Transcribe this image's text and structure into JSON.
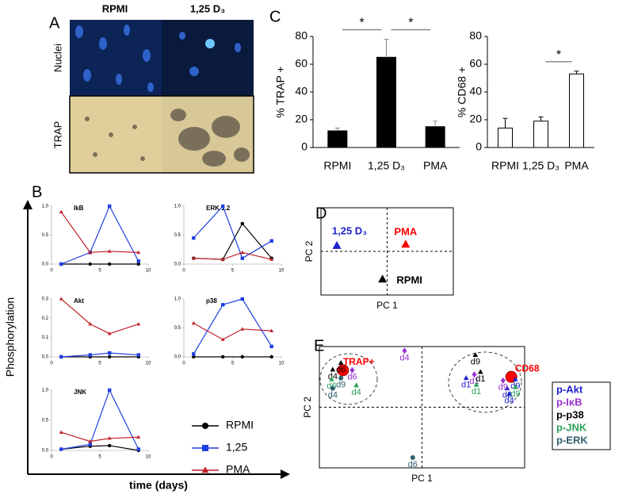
{
  "panel_labels": [
    "A",
    "B",
    "C",
    "D",
    "E"
  ],
  "panel_a": {
    "columns": [
      "RPMI",
      "1,25 D₃"
    ],
    "rows": [
      "Nuclei",
      "TRAP"
    ]
  },
  "chart_data": [
    {
      "type": "bar",
      "ylabel": "% TRAP +",
      "categories": [
        "RPMI",
        "1,25 D₃",
        "PMA"
      ],
      "values": [
        12,
        65,
        15
      ],
      "errors": [
        2,
        13,
        4
      ],
      "color": "#000000",
      "ylim": [
        0,
        80
      ],
      "yticks": [
        0,
        20,
        40,
        60,
        80
      ],
      "annotations": [
        "*",
        "*"
      ]
    },
    {
      "type": "bar",
      "ylabel": "% CD68 +",
      "categories": [
        "RPMI",
        "1,25 D₃",
        "PMA"
      ],
      "values": [
        14,
        19,
        53
      ],
      "errors": [
        7,
        3,
        2
      ],
      "color": "#ffffff",
      "ylim": [
        0,
        80
      ],
      "yticks": [
        0,
        20,
        40,
        60,
        80
      ],
      "annotations": [
        "*"
      ]
    },
    {
      "type": "line",
      "xlabel": "time (days)",
      "ylabel": "Phosphorylation",
      "x": [
        1,
        4,
        6,
        9
      ],
      "xlim": [
        0,
        10
      ],
      "xticks": [
        0,
        5,
        10
      ],
      "series": [
        {
          "name": "RPMI",
          "color": "#000000",
          "marker": "circle"
        },
        {
          "name": "1,25",
          "color": "#1f3fe0",
          "marker": "square"
        },
        {
          "name": "PMA",
          "color": "#c0202a",
          "marker": "triangle"
        }
      ],
      "subplots": [
        {
          "title": "IkB",
          "ylim": [
            0,
            1
          ],
          "yticks": [
            {
              "value": 0,
              "label": "0.0"
            },
            {
              "value": 0.5,
              "label": "0.5"
            },
            {
              "value": 1,
              "label": "1.0"
            }
          ],
          "values": [
            [
              0,
              0,
              0,
              0
            ],
            [
              0,
              0.2,
              1.0,
              0.05
            ],
            [
              0.9,
              0.2,
              0.22,
              0.2
            ]
          ]
        },
        {
          "title": "ERK 1.2",
          "ylim": [
            0,
            1
          ],
          "yticks": [
            {
              "value": 0,
              "label": "0.0"
            },
            {
              "value": 0.5,
              "label": "0.5"
            },
            {
              "value": 1,
              "label": "1.0"
            }
          ],
          "values": [
            [
              0.1,
              0.08,
              0.7,
              0.1
            ],
            [
              0.45,
              1.0,
              0.1,
              0.4
            ],
            [
              0.1,
              0.08,
              0.2,
              0.08
            ]
          ]
        },
        {
          "title": "Akt",
          "ylim": [
            0,
            0.3
          ],
          "yticks": [
            {
              "value": 0,
              "label": "0.0"
            },
            {
              "value": 0.1,
              "label": "0.1"
            },
            {
              "value": 0.2,
              "label": "0.2"
            },
            {
              "value": 0.3,
              "label": "0.3"
            }
          ],
          "values": [
            [
              0,
              0,
              0,
              0
            ],
            [
              0,
              0.01,
              0.02,
              0.01
            ],
            [
              0.3,
              0.17,
              0.12,
              0.17
            ]
          ]
        },
        {
          "title": "p38",
          "ylim": [
            0,
            1
          ],
          "yticks": [
            {
              "value": 0,
              "label": "0.0"
            },
            {
              "value": 0.5,
              "label": "0.5"
            },
            {
              "value": 1,
              "label": "1.0"
            }
          ],
          "values": [
            [
              0,
              0,
              0,
              0
            ],
            [
              0.05,
              0.9,
              1.0,
              0.18
            ],
            [
              0.58,
              0.3,
              0.48,
              0.45
            ]
          ]
        },
        {
          "title": "JNK",
          "ylim": [
            0,
            1
          ],
          "yticks": [
            {
              "value": 0,
              "label": "0.0"
            },
            {
              "value": 0.5,
              "label": "0.5"
            },
            {
              "value": 1,
              "label": "1.0"
            }
          ],
          "values": [
            [
              0.02,
              0.07,
              0.08,
              0
            ],
            [
              0.02,
              0.1,
              1.0,
              0.02
            ],
            [
              0.3,
              0.15,
              0.2,
              0.22
            ]
          ]
        }
      ]
    },
    {
      "type": "scatter",
      "xlabel": "PC 1",
      "ylabel": "PC 2",
      "xlim": [
        -1,
        1
      ],
      "ylim": [
        -1,
        1
      ],
      "series": [
        {
          "name": "1,25 D₃",
          "color": "#1f1fd0",
          "x": [
            -0.76
          ],
          "y": [
            0.13
          ]
        },
        {
          "name": "PMA",
          "color": "#ff0000",
          "x": [
            0.28
          ],
          "y": [
            0.16
          ]
        },
        {
          "name": "RPMI",
          "color": "#000000",
          "x": [
            -0.07
          ],
          "y": [
            -0.64
          ]
        }
      ]
    },
    {
      "type": "scatter",
      "xlabel": "PC 1",
      "ylabel": "PC 2",
      "xlim": [
        -1,
        1
      ],
      "ylim": [
        -1,
        1
      ],
      "legend": "right",
      "series": [
        {
          "name": "p-Akt",
          "color": "#1f1fd0",
          "marker": "triangle",
          "x": [
            0.43,
            0.91,
            0.83,
            0.85
          ],
          "y": [
            0.48,
            0.46,
            0.31,
            0.22
          ],
          "labels": [
            "d1",
            "d9",
            "d6",
            "d4"
          ]
        },
        {
          "name": "p-IκB",
          "color": "#9b30d0",
          "marker": "diamond",
          "x": [
            -0.17,
            -0.68,
            0.51,
            0.79
          ],
          "y": [
            0.93,
            0.61,
            0.54,
            0.44
          ],
          "labels": [
            "d4",
            "d6",
            "d1",
            "d9"
          ]
        },
        {
          "name": "p-p38",
          "color": "#000000",
          "marker": "triangle",
          "x": [
            0.52,
            0.57,
            -0.87,
            -0.79
          ],
          "y": [
            0.86,
            0.58,
            0.62,
            0.73
          ],
          "labels": [
            "d9",
            "d1",
            "d4",
            "d6"
          ]
        },
        {
          "name": "p-JNK",
          "color": "#2ca05a",
          "marker": "triangle",
          "x": [
            0.53,
            0.91,
            -0.64,
            -0.88
          ],
          "y": [
            0.37,
            0.33,
            0.36,
            0.46
          ],
          "labels": [
            "d1",
            "d9",
            "d4",
            "d6"
          ]
        },
        {
          "name": "p-ERK",
          "color": "#2f5f6f",
          "marker": "circle",
          "x": [
            -0.09,
            -0.79,
            -0.87
          ],
          "y": [
            -0.83,
            0.48,
            0.31
          ],
          "labels": [
            "d6",
            "d9",
            "d4"
          ]
        }
      ],
      "annotations": [
        {
          "text": "TRAP+",
          "x": -0.77,
          "y": 0.61,
          "color": "#ff0000"
        },
        {
          "text": "CD68",
          "x": 0.87,
          "y": 0.5,
          "color": "#ff0000"
        }
      ]
    }
  ]
}
